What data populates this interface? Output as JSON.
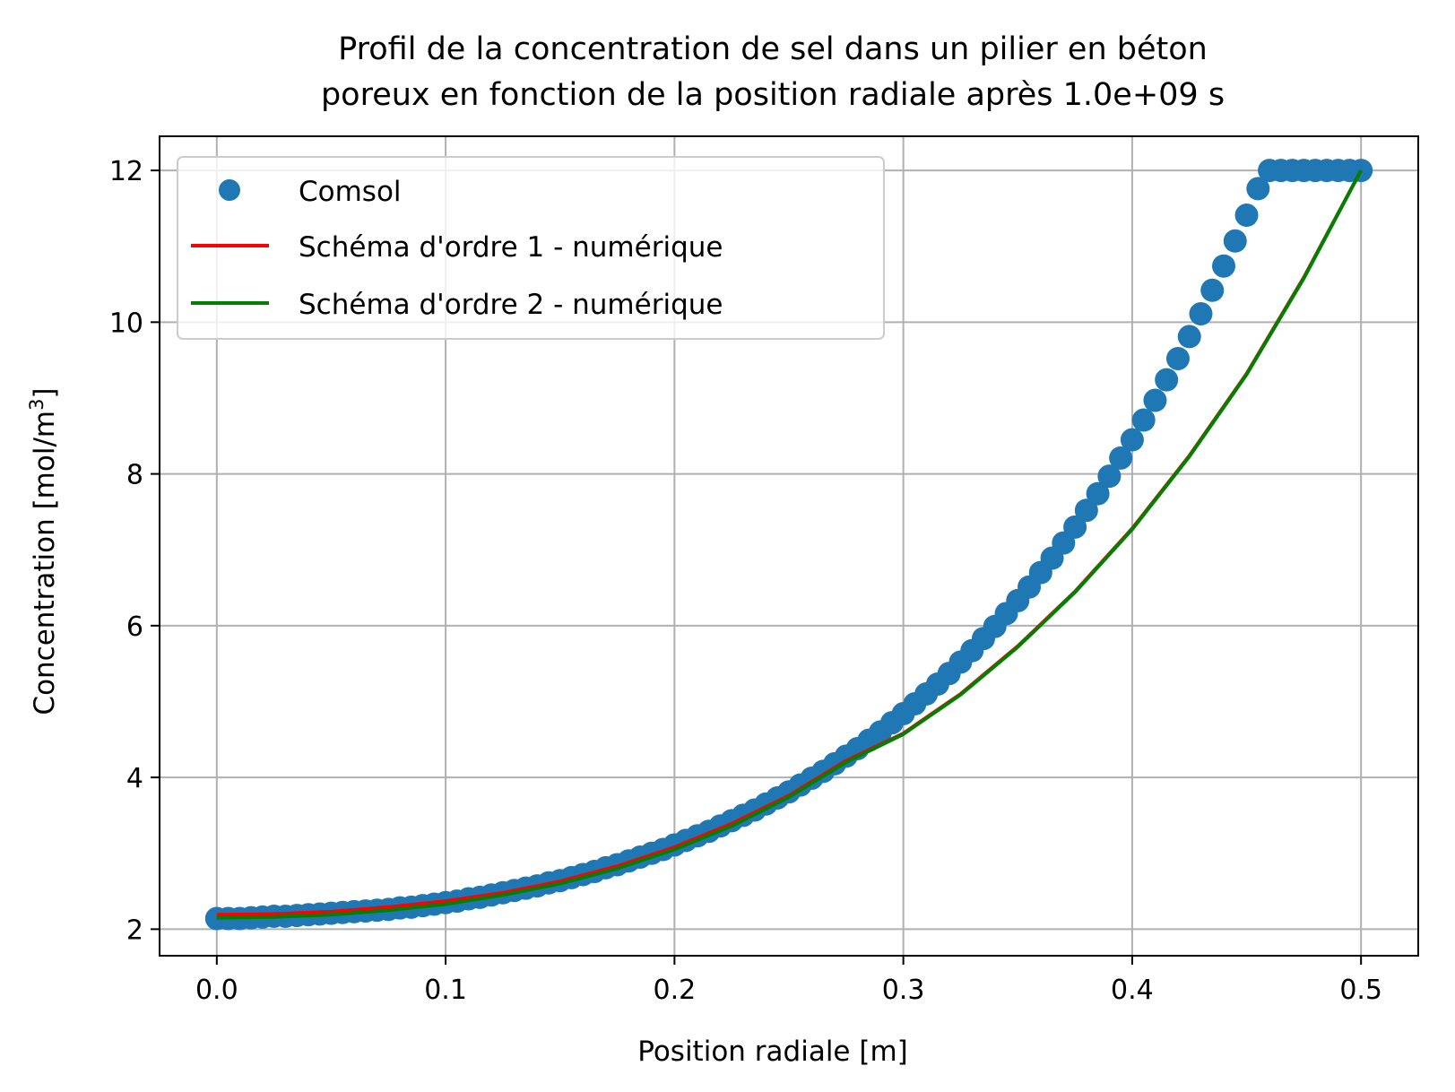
{
  "chart_data": {
    "type": "line",
    "title_lines": [
      "Profil de la concentration de sel dans un pilier en béton",
      "poreux en fonction de la position radiale après 1.0e+09 s"
    ],
    "xlabel": "Position radiale [m]",
    "ylabel": {
      "base": "Concentration [mol/m",
      "superscript": "3",
      "close": "]"
    },
    "xlim": [
      -0.025,
      0.525
    ],
    "ylim": [
      1.65,
      12.45
    ],
    "x_ticks": [
      0.0,
      0.1,
      0.2,
      0.3,
      0.4,
      0.5
    ],
    "x_tick_labels": [
      "0.0",
      "0.1",
      "0.2",
      "0.3",
      "0.4",
      "0.5"
    ],
    "y_ticks": [
      2,
      4,
      6,
      8,
      10,
      12
    ],
    "y_tick_labels": [
      "2",
      "4",
      "6",
      "8",
      "10",
      "12"
    ],
    "grid": true,
    "legend_position": "top-left",
    "series": [
      {
        "name": "Comsol",
        "kind": "scatter",
        "color": "#1f77b4",
        "x": [
          0.0,
          0.005,
          0.01,
          0.015,
          0.02,
          0.025,
          0.03,
          0.035,
          0.04,
          0.045,
          0.05,
          0.055,
          0.06,
          0.065,
          0.07,
          0.075,
          0.08,
          0.085,
          0.09,
          0.095,
          0.1,
          0.105,
          0.11,
          0.115,
          0.12,
          0.125,
          0.13,
          0.135,
          0.14,
          0.145,
          0.15,
          0.155,
          0.16,
          0.165,
          0.17,
          0.175,
          0.18,
          0.185,
          0.19,
          0.195,
          0.2,
          0.205,
          0.21,
          0.215,
          0.22,
          0.225,
          0.23,
          0.235,
          0.24,
          0.245,
          0.25,
          0.255,
          0.26,
          0.265,
          0.27,
          0.275,
          0.28,
          0.285,
          0.29,
          0.295,
          0.3,
          0.305,
          0.31,
          0.315,
          0.32,
          0.325,
          0.33,
          0.335,
          0.34,
          0.345,
          0.35,
          0.355,
          0.36,
          0.365,
          0.37,
          0.375,
          0.38,
          0.385,
          0.39,
          0.395,
          0.4,
          0.405,
          0.41,
          0.415,
          0.42,
          0.425,
          0.43,
          0.435,
          0.44,
          0.445,
          0.45,
          0.455,
          0.46,
          0.465,
          0.47,
          0.475,
          0.48,
          0.485,
          0.49,
          0.495,
          0.5
        ],
        "y": [
          2.14,
          2.14,
          2.14,
          2.15,
          2.16,
          2.17,
          2.17,
          2.18,
          2.19,
          2.2,
          2.21,
          2.22,
          2.23,
          2.24,
          2.25,
          2.26,
          2.28,
          2.29,
          2.31,
          2.33,
          2.35,
          2.37,
          2.4,
          2.42,
          2.45,
          2.48,
          2.51,
          2.54,
          2.57,
          2.61,
          2.64,
          2.68,
          2.72,
          2.76,
          2.81,
          2.85,
          2.9,
          2.95,
          3.0,
          3.05,
          3.11,
          3.17,
          3.23,
          3.29,
          3.36,
          3.43,
          3.5,
          3.57,
          3.65,
          3.73,
          3.81,
          3.9,
          3.99,
          4.08,
          4.18,
          4.28,
          4.38,
          4.49,
          4.6,
          4.72,
          4.84,
          4.97,
          5.1,
          5.23,
          5.37,
          5.52,
          5.67,
          5.83,
          5.99,
          6.16,
          6.33,
          6.51,
          6.7,
          6.89,
          7.09,
          7.3,
          7.52,
          7.74,
          7.97,
          8.21,
          8.45,
          8.71,
          8.97,
          9.24,
          9.52,
          9.81,
          10.11,
          10.42,
          10.74,
          11.07,
          11.41,
          11.76,
          12.0,
          12.0,
          12.0,
          12.0,
          12.0,
          12.0,
          12.0,
          12.0,
          12.0
        ]
      },
      {
        "name": "Schéma d'ordre 1 - numérique",
        "kind": "line",
        "color": "#ff0000",
        "x": [
          0.0,
          0.025,
          0.05,
          0.075,
          0.1,
          0.125,
          0.15,
          0.175,
          0.2,
          0.225,
          0.25,
          0.275,
          0.3,
          0.325,
          0.35,
          0.375,
          0.4,
          0.425,
          0.45,
          0.475,
          0.5
        ],
        "y": [
          2.19,
          2.2,
          2.23,
          2.29,
          2.37,
          2.48,
          2.63,
          2.83,
          3.08,
          3.39,
          3.76,
          4.22,
          4.58,
          5.1,
          5.73,
          6.45,
          7.28,
          8.24,
          9.32,
          10.59,
          12.0
        ]
      },
      {
        "name": "Schéma d'ordre 2 - numérique",
        "kind": "line",
        "color": "#008000",
        "x": [
          0.0,
          0.025,
          0.05,
          0.075,
          0.1,
          0.125,
          0.15,
          0.175,
          0.2,
          0.225,
          0.25,
          0.275,
          0.3,
          0.325,
          0.35,
          0.375,
          0.4,
          0.425,
          0.45,
          0.475,
          0.5
        ],
        "y": [
          2.15,
          2.16,
          2.19,
          2.25,
          2.33,
          2.45,
          2.6,
          2.8,
          3.05,
          3.36,
          3.74,
          4.2,
          4.57,
          5.09,
          5.72,
          6.44,
          7.27,
          8.23,
          9.31,
          10.58,
          12.0
        ]
      }
    ]
  }
}
